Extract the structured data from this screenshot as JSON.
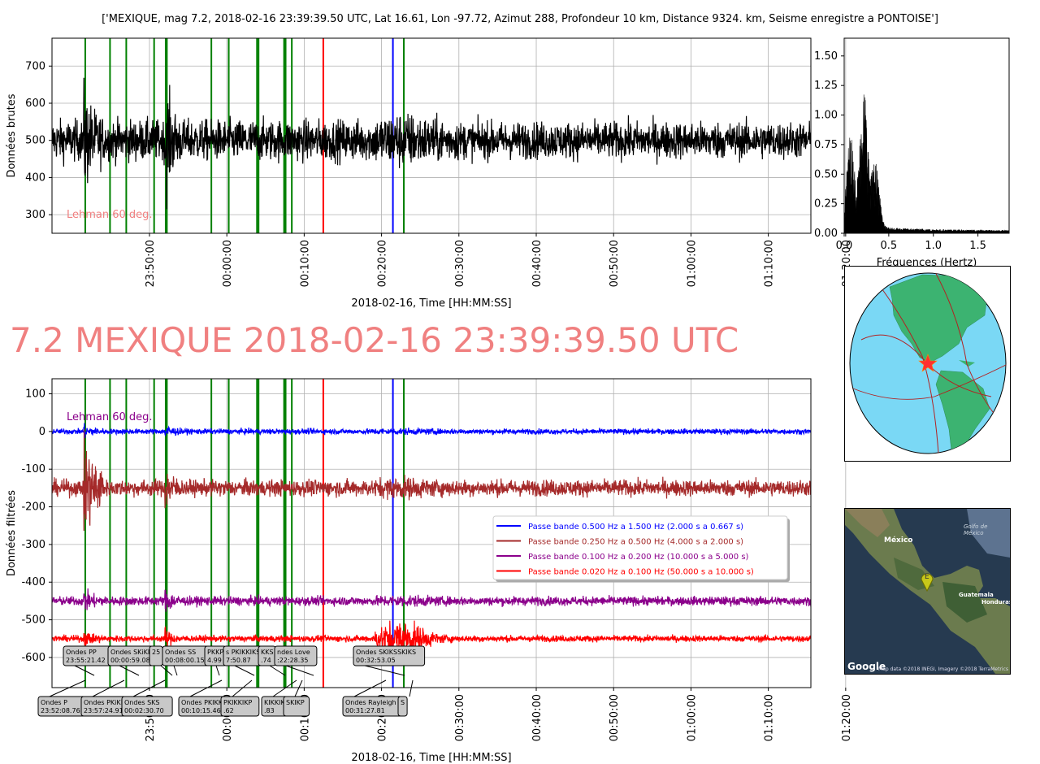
{
  "figure": {
    "suptitle": "['MEXIQUE, mag 7.2, 2018-02-16 23:39:39.50 UTC, Lat 16.61, Lon -97.72, Azimut 288, Profondeur 10 km, Distance 9324. km, Seisme enregistre a PONTOISE']",
    "big_title": "7.2 MEXIQUE 2018-02-16 23:39:39.50 UTC",
    "lehman_label": "Lehman 60 deg."
  },
  "chart_data": [
    {
      "id": "raw",
      "type": "line",
      "title": "",
      "ylabel": "Données brutes",
      "xlabel": "2018-02-16, Time [HH:MM:SS]",
      "ylim": [
        250,
        775
      ],
      "yticks": [
        300,
        400,
        500,
        600,
        700
      ],
      "xlim_minutes": [
        -12.6,
        85.5
      ],
      "xticks": [
        "23:50:00",
        "00:00:00",
        "00:10:00",
        "00:20:00",
        "00:30:00",
        "00:40:00",
        "00:50:00",
        "01:00:00",
        "01:10:00",
        "01:20:00"
      ],
      "grid": true,
      "series": [
        {
          "color": "#000000",
          "baseline": 500,
          "noise": 42
        }
      ],
      "annotation": "Lehman 60 deg."
    },
    {
      "id": "spectrum",
      "type": "area",
      "xlabel": "Fréquences (Hertz)",
      "ylabel": "",
      "xlim": [
        0,
        1.85
      ],
      "ylim": [
        0,
        1.65
      ],
      "xticks": [
        0.0,
        0.5,
        1.0,
        1.5
      ],
      "yticks": [
        0.0,
        0.25,
        0.5,
        0.75,
        1.0,
        1.25,
        1.5
      ],
      "peaks": [
        {
          "f": 0.07,
          "amp": 0.78
        },
        {
          "f": 0.22,
          "amp": 1.2
        },
        {
          "f": 0.35,
          "amp": 0.55
        }
      ],
      "color": "#000000"
    },
    {
      "id": "filtered",
      "type": "line",
      "ylabel": "Données filtrées",
      "xlabel": "2018-02-16, Time [HH:MM:SS]",
      "ylim": [
        -680,
        140
      ],
      "yticks": [
        100,
        0,
        -100,
        -200,
        -300,
        -400,
        -500,
        -600
      ],
      "xlim_minutes": [
        -12.6,
        85.5
      ],
      "xticks": [
        "23:50:00",
        "00:00:00",
        "00:10:00",
        "00:20:00",
        "00:30:00",
        "00:40:00",
        "00:50:00",
        "01:00:00",
        "01:10:00",
        "01:20:00"
      ],
      "grid": true,
      "legend_position": "center-right",
      "series": [
        {
          "name": "Passe bande 0.500 Hz a 1.500 Hz (2.000 s a 0.667 s)",
          "color": "#0000ff",
          "offset": 0
        },
        {
          "name": "Passe bande 0.250 Hz a 0.500 Hz (4.000 s a 2.000 s)",
          "color": "#a52a2a",
          "offset": -150
        },
        {
          "name": "Passe bande 0.100 Hz a 0.200 Hz (10.000 s a 5.000 s)",
          "color": "#8b008b",
          "offset": -450
        },
        {
          "name": "Passe bande 0.020 Hz a 0.100 Hz (50.000 s a 10.000 s)",
          "color": "#ff0000",
          "offset": -550
        }
      ],
      "annotation": "Lehman 60 deg."
    }
  ],
  "phase_lines": [
    {
      "t": -8.3,
      "color": "#008000"
    },
    {
      "t": -5.1,
      "color": "#008000"
    },
    {
      "t": -3.0,
      "color": "#008000"
    },
    {
      "t": 0.6,
      "color": "#008000"
    },
    {
      "t": 2.1,
      "color": "#008000"
    },
    {
      "t": 2.25,
      "color": "#008000"
    },
    {
      "t": 8.0,
      "color": "#008000"
    },
    {
      "t": 10.25,
      "color": "#008000"
    },
    {
      "t": 13.9,
      "color": "#008000"
    },
    {
      "t": 14.1,
      "color": "#008000"
    },
    {
      "t": 17.4,
      "color": "#008000"
    },
    {
      "t": 17.6,
      "color": "#008000"
    },
    {
      "t": 18.4,
      "color": "#008000"
    },
    {
      "t": 22.47,
      "color": "#ff0000"
    },
    {
      "t": 31.47,
      "color": "#0000ff"
    },
    {
      "t": 32.88,
      "color": "#008000"
    }
  ],
  "phase_labels_row1": [
    {
      "text1": "Ondes PP",
      "text2": "23:55:21.42"
    },
    {
      "text1": "Ondes SKiKP",
      "text2": "00:00:59.08"
    },
    {
      "text1": "25",
      "text2": ""
    },
    {
      "text1": "Ondes SS",
      "text2": "00:08:00.15"
    },
    {
      "text1": "PKKP",
      "text2": "4.99"
    },
    {
      "text1": "s PKIKKIKS",
      "text2": "7:50.87"
    },
    {
      "text1": "KKS",
      "text2": ".74"
    },
    {
      "text1": "ndes Love",
      "text2": ":22:28.35"
    },
    {
      "text1": "Ondes SKIKSSKIKS",
      "text2": "00:32:53.05"
    }
  ],
  "phase_labels_row2": [
    {
      "text1": "Ondes P",
      "text2": "23:52:08.76"
    },
    {
      "text1": "Ondes PKiKP",
      "text2": "23:57:24.91"
    },
    {
      "text1": "Ondes SKS",
      "text2": "00:02:30.70"
    },
    {
      "text1": "Ondes PKIKKIKP",
      "text2": "00:10:15.46"
    },
    {
      "text1": "PKIKKIKP",
      "text2": ".62"
    },
    {
      "text1": "KIKKIKS",
      "text2": ".83"
    },
    {
      "text1": "SKIKP",
      "text2": ""
    },
    {
      "text1": "Ondes Rayleigh",
      "text2": "00:31:27.81"
    },
    {
      "text1": "S",
      "text2": ""
    }
  ],
  "maps": {
    "satellite": {
      "label_mexico": "México",
      "label_gulf": "Golfo de México",
      "label_guatemala": "Guatemala",
      "label_honduras": "Honduras",
      "marker": "E",
      "logo": "Google",
      "credit": "Map data ©2018 INEGI, Imagery ©2018 TerraMetrics"
    },
    "globe": {
      "epicenter_marker": "star-icon"
    }
  }
}
